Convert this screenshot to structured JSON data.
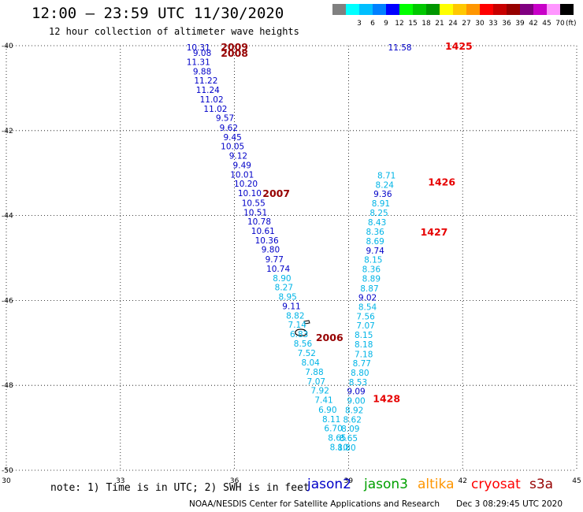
{
  "header": {
    "title": "12:00 – 23:59 UTC 11/30/2020",
    "subtitle": "12 hour collection of altimeter wave heights"
  },
  "legend": {
    "unit": "(ft)",
    "bins": [
      {
        "color": "#808080",
        "label": ""
      },
      {
        "color": "#00ffff",
        "label": "3"
      },
      {
        "color": "#00bfff",
        "label": "6"
      },
      {
        "color": "#0080ff",
        "label": "9"
      },
      {
        "color": "#0000ff",
        "label": "12"
      },
      {
        "color": "#00ff00",
        "label": "15"
      },
      {
        "color": "#00c800",
        "label": "18"
      },
      {
        "color": "#009600",
        "label": "21"
      },
      {
        "color": "#ffff00",
        "label": "24"
      },
      {
        "color": "#ffc800",
        "label": "27"
      },
      {
        "color": "#ff9600",
        "label": "30"
      },
      {
        "color": "#ff0000",
        "label": "33"
      },
      {
        "color": "#c80000",
        "label": "36"
      },
      {
        "color": "#960000",
        "label": "39"
      },
      {
        "color": "#800080",
        "label": "42"
      },
      {
        "color": "#c800c8",
        "label": "45"
      },
      {
        "color": "#ff96ff",
        "label": "70"
      },
      {
        "color": "#000000",
        "label": ""
      }
    ]
  },
  "axes": {
    "lon_ticks": [
      "30",
      "33",
      "36",
      "39",
      "42",
      "45"
    ],
    "lat_ticks": [
      "-40",
      "-42",
      "-44",
      "-46",
      "-48",
      "-50"
    ],
    "lon_range": [
      30,
      45
    ],
    "lat_range": [
      -40,
      -50
    ]
  },
  "colors": {
    "jason2": "#0000c8",
    "jason3": "#00a000",
    "altika": "#ff9600",
    "cryosat": "#ff0000",
    "s3a": "#960000",
    "cyan_value": "#00b4e6",
    "red_time": "#e60000",
    "dark_red_time": "#960000"
  },
  "tracks": [
    {
      "name": "track-west",
      "labels": [
        {
          "lon": 35.05,
          "lat": -40.04,
          "text": "10.31",
          "c": "blue"
        },
        {
          "lon": 35.15,
          "lat": -40.17,
          "text": "9.08",
          "c": "blue"
        },
        {
          "lon": 35.05,
          "lat": -40.38,
          "text": "11.31",
          "c": "blue"
        },
        {
          "lon": 35.15,
          "lat": -40.6,
          "text": "9.88",
          "c": "blue"
        },
        {
          "lon": 35.25,
          "lat": -40.82,
          "text": "11.22",
          "c": "blue"
        },
        {
          "lon": 35.3,
          "lat": -41.04,
          "text": "11.24",
          "c": "blue"
        },
        {
          "lon": 35.4,
          "lat": -41.26,
          "text": "11.02",
          "c": "blue"
        },
        {
          "lon": 35.5,
          "lat": -41.48,
          "text": "11.02",
          "c": "blue"
        },
        {
          "lon": 35.75,
          "lat": -41.7,
          "text": "9.57",
          "c": "blue"
        },
        {
          "lon": 35.85,
          "lat": -41.93,
          "text": "9.62",
          "c": "blue"
        },
        {
          "lon": 35.95,
          "lat": -42.15,
          "text": "9.45",
          "c": "blue"
        },
        {
          "lon": 35.95,
          "lat": -42.37,
          "text": "10.05",
          "c": "blue"
        },
        {
          "lon": 36.1,
          "lat": -42.59,
          "text": "9.12",
          "c": "blue"
        },
        {
          "lon": 36.2,
          "lat": -42.81,
          "text": "9.49",
          "c": "blue"
        },
        {
          "lon": 36.2,
          "lat": -43.03,
          "text": "10.01",
          "c": "blue"
        },
        {
          "lon": 36.3,
          "lat": -43.25,
          "text": "10.20",
          "c": "blue"
        },
        {
          "lon": 36.4,
          "lat": -43.47,
          "text": "10.10",
          "c": "blue"
        },
        {
          "lon": 36.5,
          "lat": -43.7,
          "text": "10.55",
          "c": "blue"
        },
        {
          "lon": 36.55,
          "lat": -43.92,
          "text": "10.51",
          "c": "blue"
        },
        {
          "lon": 36.65,
          "lat": -44.14,
          "text": "10.78",
          "c": "blue"
        },
        {
          "lon": 36.75,
          "lat": -44.36,
          "text": "10.61",
          "c": "blue"
        },
        {
          "lon": 36.85,
          "lat": -44.58,
          "text": "10.36",
          "c": "blue"
        },
        {
          "lon": 36.95,
          "lat": -44.8,
          "text": "9.80",
          "c": "blue"
        },
        {
          "lon": 37.05,
          "lat": -45.03,
          "text": "9.77",
          "c": "blue"
        },
        {
          "lon": 37.15,
          "lat": -45.25,
          "text": "10.74",
          "c": "blue"
        },
        {
          "lon": 37.25,
          "lat": -45.47,
          "text": "8.90",
          "c": "cyan"
        },
        {
          "lon": 37.3,
          "lat": -45.69,
          "text": "8.27",
          "c": "cyan"
        },
        {
          "lon": 37.4,
          "lat": -45.91,
          "text": "8.95",
          "c": "cyan"
        },
        {
          "lon": 37.5,
          "lat": -46.13,
          "text": "9.11",
          "c": "blue"
        },
        {
          "lon": 37.6,
          "lat": -46.35,
          "text": "8.82",
          "c": "cyan"
        },
        {
          "lon": 37.65,
          "lat": -46.57,
          "text": "7.14",
          "c": "cyan"
        },
        {
          "lon": 37.7,
          "lat": -46.79,
          "text": "6.83",
          "c": "cyan"
        },
        {
          "lon": 37.8,
          "lat": -47.01,
          "text": "8.56",
          "c": "cyan"
        },
        {
          "lon": 37.9,
          "lat": -47.24,
          "text": "7.52",
          "c": "cyan"
        },
        {
          "lon": 38.0,
          "lat": -47.46,
          "text": "8.04",
          "c": "cyan"
        },
        {
          "lon": 38.1,
          "lat": -47.68,
          "text": "7.88",
          "c": "cyan"
        },
        {
          "lon": 38.15,
          "lat": -47.9,
          "text": "7.07",
          "c": "cyan"
        },
        {
          "lon": 38.25,
          "lat": -48.12,
          "text": "7.92",
          "c": "cyan"
        },
        {
          "lon": 38.35,
          "lat": -48.34,
          "text": "7.41",
          "c": "cyan"
        },
        {
          "lon": 38.45,
          "lat": -48.57,
          "text": "6.90",
          "c": "cyan"
        },
        {
          "lon": 38.55,
          "lat": -48.79,
          "text": "8.11",
          "c": "cyan"
        },
        {
          "lon": 38.6,
          "lat": -49.01,
          "text": "6.70",
          "c": "cyan"
        },
        {
          "lon": 38.7,
          "lat": -49.23,
          "text": "8.65",
          "c": "cyan"
        },
        {
          "lon": 38.75,
          "lat": -49.45,
          "text": "8.10",
          "c": "cyan"
        }
      ]
    },
    {
      "name": "track-east",
      "labels": [
        {
          "lon": 40.35,
          "lat": -40.04,
          "text": "11.58",
          "c": "blue"
        },
        {
          "lon": 40.0,
          "lat": -43.05,
          "text": "8.71",
          "c": "cyan"
        },
        {
          "lon": 39.95,
          "lat": -43.27,
          "text": "8.24",
          "c": "cyan"
        },
        {
          "lon": 39.9,
          "lat": -43.49,
          "text": "9.36",
          "c": "blue"
        },
        {
          "lon": 39.85,
          "lat": -43.71,
          "text": "8.91",
          "c": "cyan"
        },
        {
          "lon": 39.8,
          "lat": -43.93,
          "text": "8.25",
          "c": "cyan"
        },
        {
          "lon": 39.75,
          "lat": -44.16,
          "text": "8.43",
          "c": "cyan"
        },
        {
          "lon": 39.7,
          "lat": -44.38,
          "text": "8.36",
          "c": "cyan"
        },
        {
          "lon": 39.7,
          "lat": -44.6,
          "text": "8.69",
          "c": "cyan"
        },
        {
          "lon": 39.7,
          "lat": -44.82,
          "text": "9.74",
          "c": "blue"
        },
        {
          "lon": 39.65,
          "lat": -45.04,
          "text": "8.15",
          "c": "cyan"
        },
        {
          "lon": 39.6,
          "lat": -45.26,
          "text": "8.36",
          "c": "cyan"
        },
        {
          "lon": 39.6,
          "lat": -45.48,
          "text": "8.89",
          "c": "cyan"
        },
        {
          "lon": 39.55,
          "lat": -45.71,
          "text": "8.87",
          "c": "cyan"
        },
        {
          "lon": 39.5,
          "lat": -45.93,
          "text": "9.02",
          "c": "blue"
        },
        {
          "lon": 39.5,
          "lat": -46.15,
          "text": "8.54",
          "c": "cyan"
        },
        {
          "lon": 39.45,
          "lat": -46.37,
          "text": "7.56",
          "c": "cyan"
        },
        {
          "lon": 39.45,
          "lat": -46.59,
          "text": "7.07",
          "c": "cyan"
        },
        {
          "lon": 39.4,
          "lat": -46.81,
          "text": "8.15",
          "c": "cyan"
        },
        {
          "lon": 39.4,
          "lat": -47.03,
          "text": "8.18",
          "c": "cyan"
        },
        {
          "lon": 39.4,
          "lat": -47.26,
          "text": "7.18",
          "c": "cyan"
        },
        {
          "lon": 39.35,
          "lat": -47.48,
          "text": "8.77",
          "c": "cyan"
        },
        {
          "lon": 39.3,
          "lat": -47.7,
          "text": "8.80",
          "c": "cyan"
        },
        {
          "lon": 39.25,
          "lat": -47.92,
          "text": "8.53",
          "c": "cyan"
        },
        {
          "lon": 39.2,
          "lat": -48.14,
          "text": "9.09",
          "c": "blue"
        },
        {
          "lon": 39.2,
          "lat": -48.36,
          "text": "9.00",
          "c": "cyan"
        },
        {
          "lon": 39.15,
          "lat": -48.58,
          "text": "8.92",
          "c": "cyan"
        },
        {
          "lon": 39.1,
          "lat": -48.8,
          "text": "8.62",
          "c": "cyan"
        },
        {
          "lon": 39.05,
          "lat": -49.02,
          "text": "8.09",
          "c": "cyan"
        },
        {
          "lon": 39.0,
          "lat": -49.24,
          "text": "8.65",
          "c": "cyan"
        },
        {
          "lon": 38.95,
          "lat": -49.46,
          "text": "8.80",
          "c": "cyan"
        }
      ]
    }
  ],
  "time_labels": [
    {
      "lon": 36.0,
      "lat": -40.02,
      "text": "2009",
      "c": "darkred"
    },
    {
      "lon": 36.0,
      "lat": -40.17,
      "text": "2008",
      "c": "darkred"
    },
    {
      "lon": 41.9,
      "lat": -40.0,
      "text": "1425",
      "c": "red"
    },
    {
      "lon": 37.1,
      "lat": -43.47,
      "text": "2007",
      "c": "darkred"
    },
    {
      "lon": 41.45,
      "lat": -43.2,
      "text": "1426",
      "c": "red"
    },
    {
      "lon": 41.25,
      "lat": -44.38,
      "text": "1427",
      "c": "red"
    },
    {
      "lon": 38.5,
      "lat": -46.86,
      "text": "2006",
      "c": "darkred"
    },
    {
      "lon": 40.0,
      "lat": -48.3,
      "text": "1428",
      "c": "red"
    }
  ],
  "footer": {
    "note": "note: 1) Time is in UTC; 2) SWH is in feet",
    "satellites": [
      "jason2",
      "jason3",
      "altika",
      "cryosat",
      "s3a"
    ],
    "credit": "NOAA/NESDIS Center for Satellite Applications and Research",
    "timestamp": "Dec  3 08:29:45 UTC 2020"
  }
}
